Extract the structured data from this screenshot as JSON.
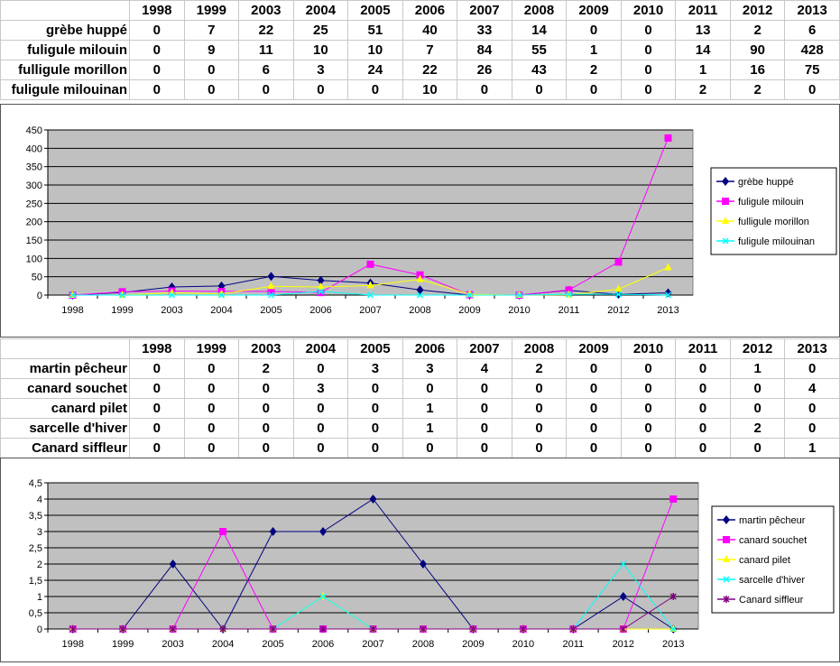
{
  "years": [
    "1998",
    "1999",
    "2003",
    "2004",
    "2005",
    "2006",
    "2007",
    "2008",
    "2009",
    "2010",
    "2011",
    "2012",
    "2013"
  ],
  "chart_data": [
    {
      "type": "line",
      "title": "",
      "ylim": [
        0,
        450
      ],
      "yticks": [
        "0",
        "50",
        "100",
        "150",
        "200",
        "250",
        "300",
        "350",
        "400",
        "450"
      ],
      "legend": "right",
      "grid": true,
      "categories": [
        "1998",
        "1999",
        "2003",
        "2004",
        "2005",
        "2006",
        "2007",
        "2008",
        "2009",
        "2010",
        "2011",
        "2012",
        "2013"
      ],
      "series": [
        {
          "name": "grèbe huppé",
          "color": "#000080",
          "marker": "diamond",
          "values": [
            0,
            7,
            22,
            25,
            51,
            40,
            33,
            14,
            0,
            0,
            13,
            2,
            6
          ]
        },
        {
          "name": "fuligule milouin",
          "color": "#ff00ff",
          "marker": "square",
          "values": [
            0,
            9,
            11,
            10,
            10,
            7,
            84,
            55,
            1,
            0,
            14,
            90,
            428
          ]
        },
        {
          "name": "fulligule morillon",
          "color": "#ffff00",
          "marker": "triangle",
          "values": [
            0,
            0,
            6,
            3,
            24,
            22,
            26,
            43,
            2,
            0,
            1,
            16,
            75
          ]
        },
        {
          "name": "fuligule milouinan",
          "color": "#00ffff",
          "marker": "x",
          "values": [
            0,
            0,
            0,
            0,
            0,
            10,
            0,
            0,
            0,
            0,
            2,
            2,
            0
          ]
        }
      ]
    },
    {
      "type": "line",
      "title": "",
      "ylim": [
        0,
        4.5
      ],
      "yticks": [
        "0",
        "0,5",
        "1",
        "1,5",
        "2",
        "2,5",
        "3",
        "3,5",
        "4",
        "4,5"
      ],
      "legend": "right",
      "grid": true,
      "categories": [
        "1998",
        "1999",
        "2003",
        "2004",
        "2005",
        "2006",
        "2007",
        "2008",
        "2009",
        "2010",
        "2011",
        "2012",
        "2013"
      ],
      "series": [
        {
          "name": "martin pêcheur",
          "color": "#000080",
          "marker": "diamond",
          "values": [
            0,
            0,
            2,
            0,
            3,
            3,
            4,
            2,
            0,
            0,
            0,
            1,
            0
          ]
        },
        {
          "name": "canard souchet",
          "color": "#ff00ff",
          "marker": "square",
          "values": [
            0,
            0,
            0,
            3,
            0,
            0,
            0,
            0,
            0,
            0,
            0,
            0,
            4
          ]
        },
        {
          "name": "canard pilet",
          "color": "#ffff00",
          "marker": "triangle",
          "values": [
            0,
            0,
            0,
            0,
            0,
            1,
            0,
            0,
            0,
            0,
            0,
            0,
            0
          ]
        },
        {
          "name": "sarcelle d'hiver",
          "color": "#00ffff",
          "marker": "x",
          "values": [
            0,
            0,
            0,
            0,
            0,
            1,
            0,
            0,
            0,
            0,
            0,
            2,
            0
          ]
        },
        {
          "name": "Canard siffleur",
          "color": "#800080",
          "marker": "star",
          "values": [
            0,
            0,
            0,
            0,
            0,
            0,
            0,
            0,
            0,
            0,
            0,
            0,
            1
          ]
        }
      ]
    }
  ]
}
